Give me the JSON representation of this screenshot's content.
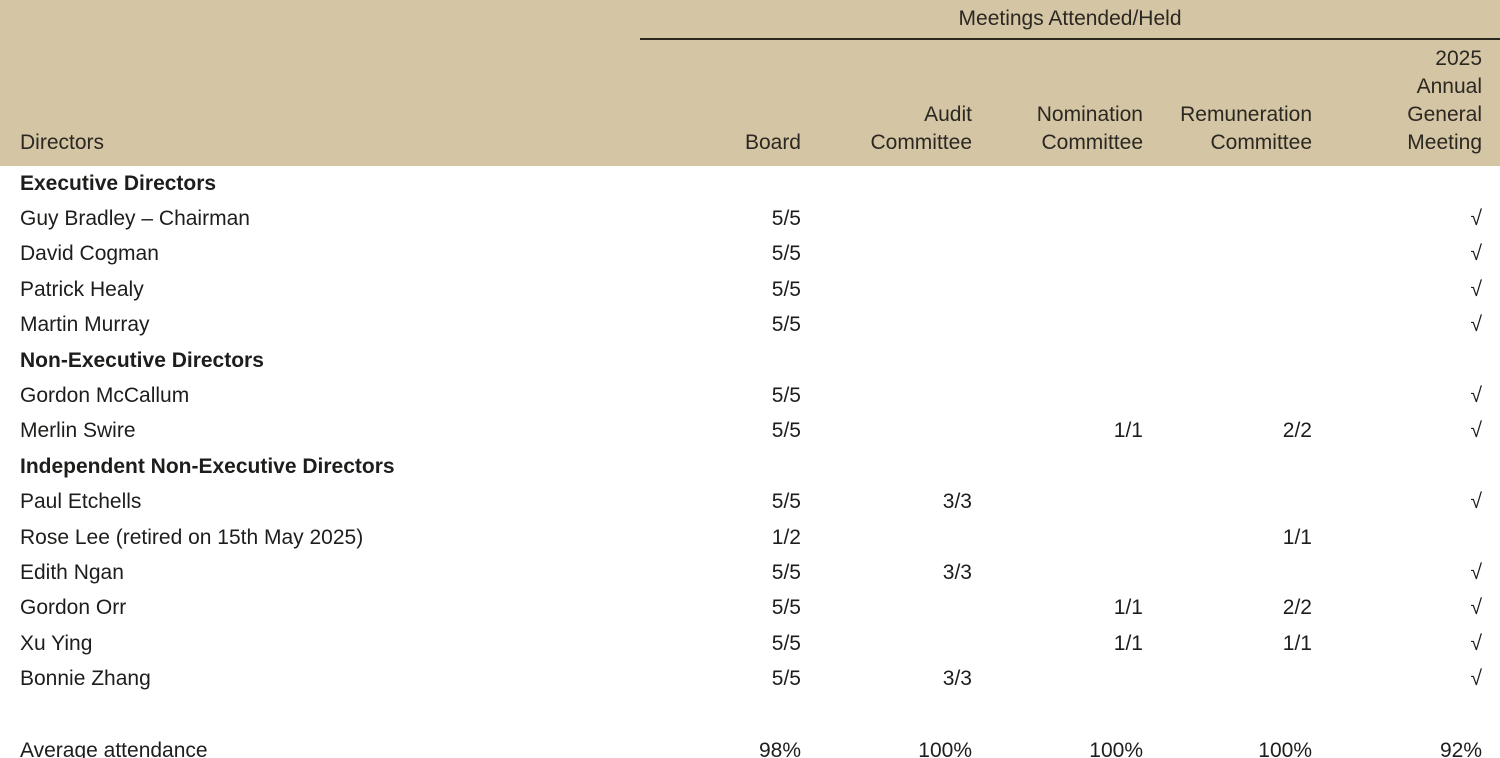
{
  "table": {
    "spanner_title": "Meetings Attended/Held",
    "columns": {
      "directors": "Directors",
      "board": "Board",
      "audit": "Audit\nCommittee",
      "nomination": "Nomination\nCommittee",
      "remuneration": "Remuneration\nCommittee",
      "agm": "2025\nAnnual\nGeneral\nMeeting"
    },
    "checkmark_glyph": "√",
    "rows": [
      {
        "kind": "group",
        "name": "Executive Directors"
      },
      {
        "kind": "director",
        "name": "Guy Bradley – Chairman",
        "board": "5/5",
        "audit": "",
        "nomination": "",
        "remuneration": "",
        "agm": "√"
      },
      {
        "kind": "director",
        "name": "David Cogman",
        "board": "5/5",
        "audit": "",
        "nomination": "",
        "remuneration": "",
        "agm": "√"
      },
      {
        "kind": "director",
        "name": "Patrick Healy",
        "board": "5/5",
        "audit": "",
        "nomination": "",
        "remuneration": "",
        "agm": "√"
      },
      {
        "kind": "director",
        "name": "Martin Murray",
        "board": "5/5",
        "audit": "",
        "nomination": "",
        "remuneration": "",
        "agm": "√"
      },
      {
        "kind": "group",
        "name": "Non-Executive Directors"
      },
      {
        "kind": "director",
        "name": "Gordon McCallum",
        "board": "5/5",
        "audit": "",
        "nomination": "",
        "remuneration": "",
        "agm": "√"
      },
      {
        "kind": "director",
        "name": "Merlin Swire",
        "board": "5/5",
        "audit": "",
        "nomination": "1/1",
        "remuneration": "2/2",
        "agm": "√"
      },
      {
        "kind": "group",
        "name": "Independent Non-Executive Directors"
      },
      {
        "kind": "director",
        "name": "Paul Etchells",
        "board": "5/5",
        "audit": "3/3",
        "nomination": "",
        "remuneration": "",
        "agm": "√"
      },
      {
        "kind": "director",
        "name": "Rose Lee (retired on 15th May 2025)",
        "board": "1/2",
        "audit": "",
        "nomination": "",
        "remuneration": "1/1",
        "agm": ""
      },
      {
        "kind": "director",
        "name": "Edith Ngan",
        "board": "5/5",
        "audit": "3/3",
        "nomination": "",
        "remuneration": "",
        "agm": "√"
      },
      {
        "kind": "director",
        "name": "Gordon Orr",
        "board": "5/5",
        "audit": "",
        "nomination": "1/1",
        "remuneration": "2/2",
        "agm": "√"
      },
      {
        "kind": "director",
        "name": "Xu Ying",
        "board": "5/5",
        "audit": "",
        "nomination": "1/1",
        "remuneration": "1/1",
        "agm": "√"
      },
      {
        "kind": "director",
        "name": "Bonnie Zhang",
        "board": "5/5",
        "audit": "3/3",
        "nomination": "",
        "remuneration": "",
        "agm": "√"
      }
    ],
    "footer": {
      "label": "Average attendance",
      "board": "98%",
      "audit": "100%",
      "nomination": "100%",
      "remuneration": "100%",
      "agm": "92%"
    }
  },
  "colors": {
    "header_background": "#d4c5a4",
    "header_underline": "#2c2721",
    "body_text": "#1d1d1b",
    "bottom_stripe_light": "#a9c8d3",
    "bottom_stripe_dark": "#45748a"
  }
}
